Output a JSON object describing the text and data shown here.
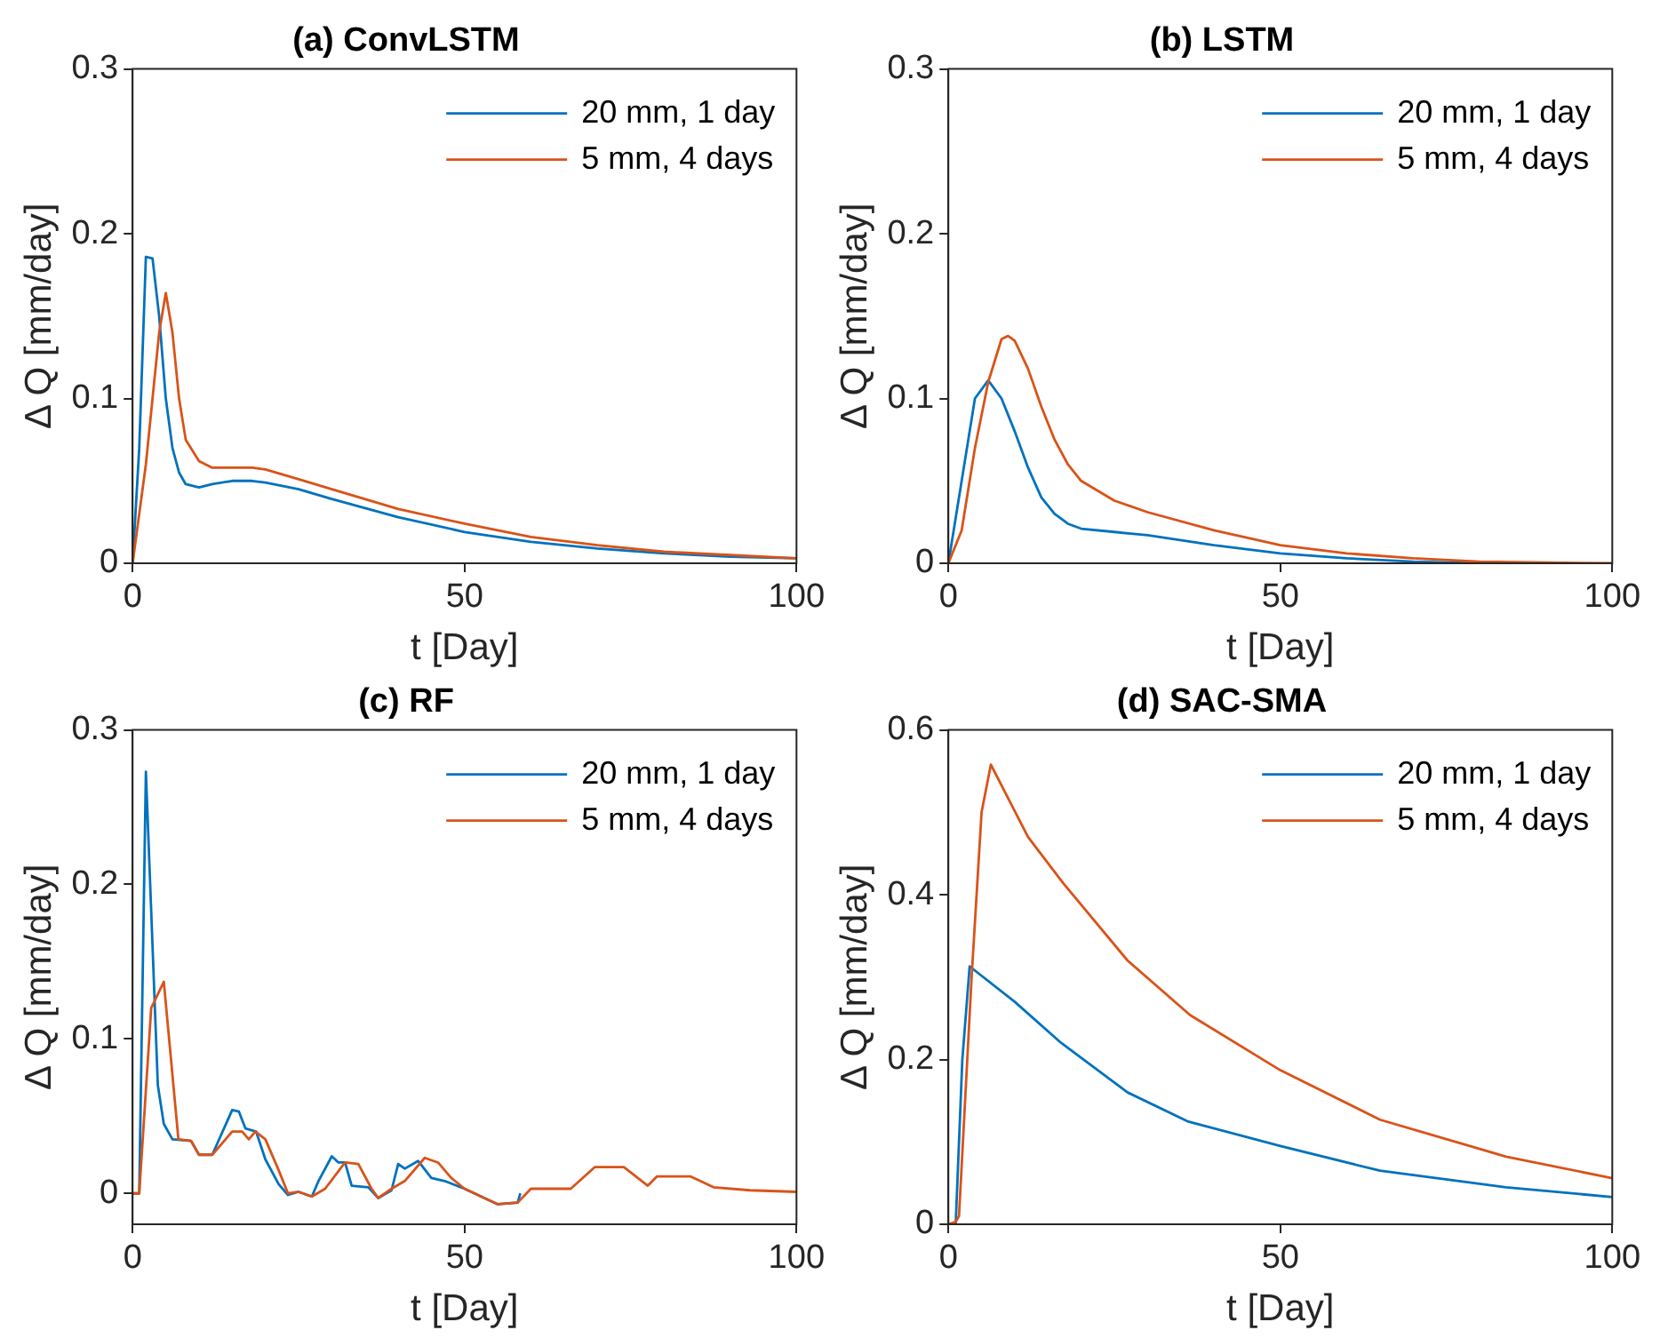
{
  "chart_data": [
    {
      "type": "line",
      "title": "(a) ConvLSTM",
      "xlabel": "t [Day]",
      "ylabel": "Δ Q [mm/day]",
      "xlim": [
        0,
        100
      ],
      "xticks": [
        0,
        50,
        100
      ],
      "ylim": [
        0,
        0.3
      ],
      "yticks": [
        0,
        0.1,
        0.2,
        0.3
      ],
      "legend": "top right",
      "grid": false,
      "series": [
        {
          "name": "20 mm, 1 day",
          "color": "#0072bd",
          "x": [
            0,
            1,
            2,
            3,
            4,
            5,
            6,
            7,
            8,
            10,
            12,
            15,
            18,
            20,
            25,
            30,
            40,
            50,
            60,
            70,
            80,
            90,
            100
          ],
          "values": [
            0,
            0.07,
            0.186,
            0.185,
            0.15,
            0.1,
            0.07,
            0.055,
            0.048,
            0.046,
            0.048,
            0.05,
            0.05,
            0.049,
            0.045,
            0.039,
            0.028,
            0.019,
            0.013,
            0.009,
            0.006,
            0.004,
            0.003
          ]
        },
        {
          "name": "5 mm, 4 days",
          "color": "#d95319",
          "x": [
            0,
            2,
            4,
            5,
            6,
            7,
            8,
            10,
            12,
            15,
            18,
            20,
            25,
            30,
            40,
            50,
            60,
            70,
            80,
            90,
            100
          ],
          "values": [
            0,
            0.06,
            0.14,
            0.164,
            0.14,
            0.1,
            0.075,
            0.062,
            0.058,
            0.058,
            0.058,
            0.057,
            0.051,
            0.045,
            0.033,
            0.024,
            0.016,
            0.011,
            0.007,
            0.005,
            0.003
          ]
        }
      ]
    },
    {
      "type": "line",
      "title": "(b) LSTM",
      "xlabel": "t [Day]",
      "ylabel": "Δ Q [mm/day]",
      "xlim": [
        0,
        100
      ],
      "xticks": [
        0,
        50,
        100
      ],
      "ylim": [
        0,
        0.3
      ],
      "yticks": [
        0,
        0.1,
        0.2,
        0.3
      ],
      "legend": "top right",
      "grid": false,
      "series": [
        {
          "name": "20 mm, 1 day",
          "color": "#0072bd",
          "x": [
            0,
            2,
            4,
            6,
            8,
            10,
            12,
            14,
            16,
            18,
            20,
            25,
            30,
            40,
            50,
            60,
            70,
            80
          ],
          "values": [
            0,
            0.05,
            0.1,
            0.111,
            0.1,
            0.08,
            0.058,
            0.04,
            0.03,
            0.024,
            0.021,
            0.019,
            0.017,
            0.011,
            0.006,
            0.003,
            0.001,
            0
          ]
        },
        {
          "name": "5 mm, 4 days",
          "color": "#d95319",
          "x": [
            0,
            2,
            4,
            6,
            8,
            9,
            10,
            12,
            14,
            16,
            18,
            20,
            25,
            30,
            40,
            50,
            60,
            70,
            80,
            100
          ],
          "values": [
            0,
            0.02,
            0.07,
            0.11,
            0.136,
            0.138,
            0.135,
            0.118,
            0.095,
            0.075,
            0.06,
            0.05,
            0.038,
            0.031,
            0.02,
            0.011,
            0.006,
            0.003,
            0.001,
            0
          ]
        }
      ]
    },
    {
      "type": "line",
      "title": "(c) RF",
      "xlabel": "t [Day]",
      "ylabel": "Δ Q [mm/day]",
      "xlim": [
        0,
        100
      ],
      "xticks": [
        0,
        50,
        100
      ],
      "ylim": [
        -0.02,
        0.3
      ],
      "yticks": [
        0,
        0.1,
        0.2,
        0.3
      ],
      "legend": "top right",
      "grid": false,
      "series": [
        {
          "name": "20 mm, 1 day",
          "color": "#0072bd",
          "x": [
            0,
            1,
            2,
            3.8,
            4.7,
            6,
            8.8,
            10,
            12,
            15,
            16,
            17,
            18.6,
            20,
            22,
            23.4,
            25,
            27,
            28,
            30,
            31,
            32,
            33,
            35.5,
            37,
            39,
            40,
            41,
            43,
            45,
            47,
            50,
            55,
            58,
            58.4
          ],
          "values": [
            0,
            0,
            0.273,
            0.07,
            0.045,
            0.035,
            0.034,
            0.025,
            0.025,
            0.054,
            0.053,
            0.042,
            0.04,
            0.022,
            0.006,
            -0.001,
            0.001,
            -0.002,
            0.008,
            0.024,
            0.02,
            0.02,
            0.005,
            0.004,
            -0.003,
            0.002,
            0.019,
            0.016,
            0.021,
            0.01,
            0.008,
            0.003,
            -0.007,
            -0.006,
            0
          ]
        },
        {
          "name": "5 mm, 4 days",
          "color": "#d95319",
          "x": [
            0,
            1,
            2.8,
            4.7,
            6.9,
            8.8,
            10,
            12,
            15,
            16.5,
            17.5,
            18.5,
            20,
            22,
            23.4,
            25,
            27,
            29,
            32,
            34,
            36,
            37,
            39,
            41,
            44,
            46,
            48,
            50,
            55,
            58,
            60,
            66,
            69.6,
            74,
            77.6,
            79,
            84,
            87.5,
            93,
            100
          ],
          "values": [
            0,
            0,
            0.12,
            0.137,
            0.035,
            0.034,
            0.025,
            0.025,
            0.04,
            0.04,
            0.035,
            0.04,
            0.035,
            0.015,
            0,
            0.001,
            -0.002,
            0.003,
            0.02,
            0.019,
            0.003,
            -0.003,
            0.003,
            0.008,
            0.023,
            0.02,
            0.01,
            0.003,
            -0.007,
            -0.006,
            0.003,
            0.003,
            0.017,
            0.017,
            0.005,
            0.011,
            0.011,
            0.004,
            0.002,
            0.001
          ]
        }
      ]
    },
    {
      "type": "line",
      "title": "(d) SAC-SMA",
      "xlabel": "t [Day]",
      "ylabel": "Δ Q [mm/day]",
      "xlim": [
        0,
        100
      ],
      "xticks": [
        0,
        50,
        100
      ],
      "ylim": [
        0,
        0.6
      ],
      "yticks": [
        0,
        0.2,
        0.4,
        0.6
      ],
      "legend": "top right",
      "grid": false,
      "series": [
        {
          "name": "20 mm, 1 day",
          "color": "#0072bd",
          "x": [
            0,
            1.1,
            2.1,
            3.2,
            10,
            17,
            27,
            36,
            50,
            65,
            84,
            100
          ],
          "values": [
            0,
            0,
            0.2,
            0.313,
            0.27,
            0.22,
            0.16,
            0.125,
            0.095,
            0.065,
            0.045,
            0.033
          ]
        },
        {
          "name": "5 mm, 4 days",
          "color": "#d95319",
          "x": [
            0,
            1.1,
            1.6,
            3.5,
            5,
            6.4,
            12,
            17.3,
            27,
            36.4,
            50,
            65,
            84,
            100
          ],
          "values": [
            0,
            0.003,
            0.01,
            0.3,
            0.5,
            0.558,
            0.47,
            0.414,
            0.32,
            0.254,
            0.187,
            0.127,
            0.082,
            0.056
          ]
        }
      ]
    }
  ]
}
